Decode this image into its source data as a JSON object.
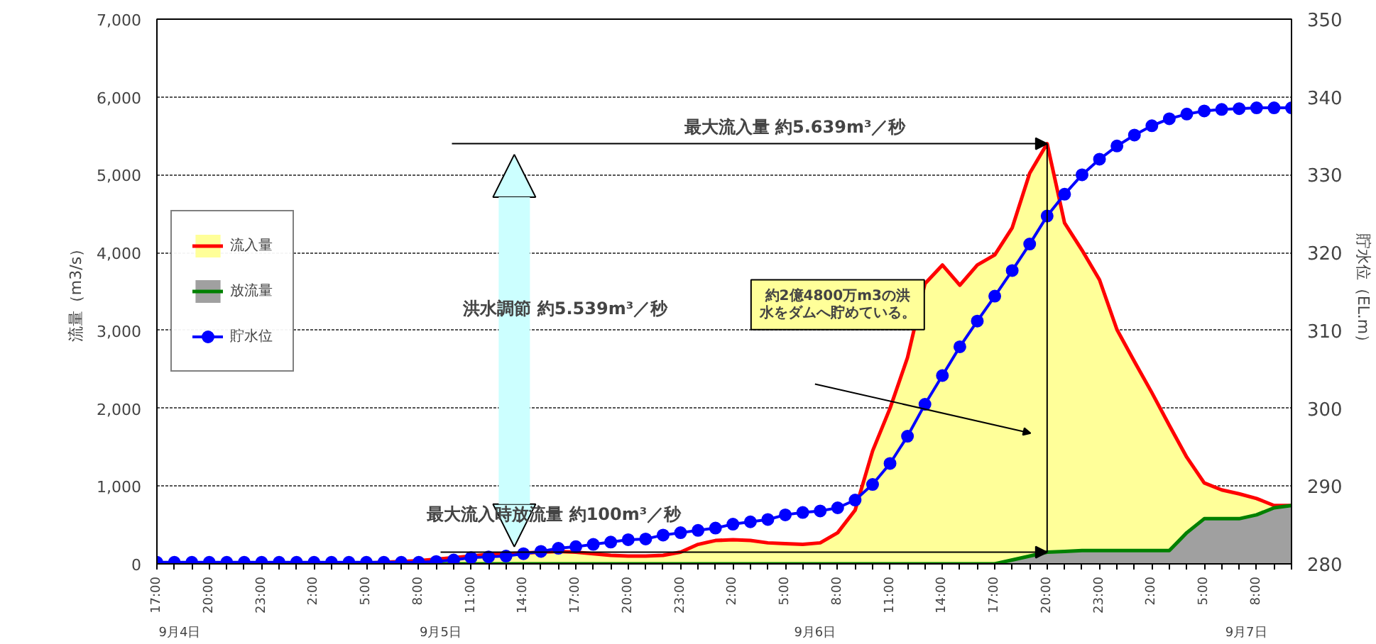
{
  "chart_data": {
    "type": "area",
    "ylabel": "流量（m3/s）",
    "y2label": "貯水位（EL.m）",
    "categories": [
      "17:00",
      null,
      null,
      "20:00",
      null,
      null,
      "23:00",
      null,
      null,
      "2:00",
      null,
      null,
      "5:00",
      null,
      null,
      "8:00",
      null,
      null,
      "11:00",
      null,
      null,
      "14:00",
      null,
      null,
      "17:00",
      null,
      null,
      "20:00",
      null,
      null,
      "23:00",
      null,
      null,
      "2:00",
      null,
      null,
      "5:00",
      null,
      null,
      "8:00",
      null,
      null,
      "11:00",
      null,
      null,
      "14:00",
      null,
      null,
      "17:00",
      null,
      null,
      "20:00",
      null,
      null,
      "23:00",
      null,
      null,
      "2:00",
      null,
      null,
      "5:00",
      null,
      null,
      "8:00",
      null,
      null
    ],
    "series": [
      {
        "name": "流入量",
        "color": "#ff0000",
        "values": [
          0,
          0,
          0,
          0,
          0,
          0,
          0,
          0,
          0,
          0,
          0,
          0,
          10,
          20,
          30,
          40,
          60,
          80,
          100,
          120,
          130,
          140,
          150,
          160,
          150,
          130,
          110,
          100,
          100,
          110,
          150,
          250,
          300,
          310,
          300,
          270,
          260,
          250,
          270,
          400,
          690,
          1450,
          2000,
          2650,
          3600,
          3840,
          3580,
          3840,
          3970,
          4320,
          5020,
          5400,
          4380,
          4030,
          3650,
          3010,
          2600,
          2200,
          1780,
          1370,
          1040,
          950,
          900,
          840,
          750,
          750
        ]
      },
      {
        "name": "放流量",
        "color": "#008000",
        "values": [
          0,
          0,
          0,
          0,
          0,
          0,
          0,
          0,
          0,
          0,
          0,
          0,
          0,
          0,
          0,
          0,
          0,
          0,
          0,
          0,
          0,
          0,
          0,
          0,
          0,
          0,
          0,
          0,
          0,
          0,
          0,
          0,
          0,
          0,
          0,
          0,
          0,
          0,
          0,
          0,
          0,
          0,
          0,
          0,
          0,
          0,
          0,
          0,
          0,
          50,
          100,
          150,
          160,
          170,
          170,
          170,
          170,
          170,
          170,
          400,
          580,
          580,
          580,
          630,
          720,
          750
        ]
      },
      {
        "name": "貯水位",
        "type": "line",
        "axis": "y2",
        "marker": "circle",
        "color": "#0000ff",
        "values": [
          280.2,
          280.2,
          280.2,
          280.2,
          280.2,
          280.2,
          280.2,
          280.2,
          280.2,
          280.2,
          280.2,
          280.2,
          280.2,
          280.2,
          280.2,
          280.2,
          280.3,
          280.5,
          280.8,
          280.9,
          281,
          281.3,
          281.6,
          282,
          282.2,
          282.5,
          282.8,
          283.1,
          283.2,
          283.7,
          284,
          284.3,
          284.6,
          285.1,
          285.4,
          285.7,
          286.3,
          286.6,
          286.8,
          287.2,
          288.2,
          290.2,
          292.9,
          296.4,
          300.5,
          304.2,
          307.9,
          311.2,
          314.4,
          317.7,
          321.1,
          324.7,
          327.5,
          330,
          332,
          333.7,
          335.1,
          336.3,
          337.2,
          337.8,
          338.2,
          338.4,
          338.5,
          338.6,
          338.6,
          338.6
        ]
      }
    ],
    "ylim": [
      0,
      7000
    ],
    "yticks": [
      0,
      {
        "value": 1000,
        "label": "1,000"
      },
      {
        "value": 2000,
        "label": "2,000"
      },
      {
        "value": 3000,
        "label": "3,000"
      },
      {
        "value": 4000,
        "label": "4,000"
      },
      {
        "value": 5000,
        "label": "5,000"
      },
      {
        "value": 6000,
        "label": "6,000"
      },
      {
        "value": 7000,
        "label": "7,000"
      }
    ],
    "y2lim": [
      280,
      350
    ],
    "y2ticks": [
      280,
      290,
      300,
      310,
      320,
      330,
      340,
      350
    ],
    "grid": "y",
    "legend": "left",
    "annotations": [
      "最大流入量 約5.639m³／秒",
      "最大流入時放流量 約100m³／秒",
      "洪水調節 約5.539m³／秒",
      "約2億4800万m3の洪水をダムへ貯めている。",
      "9月4日",
      "9月5日",
      "9月6日",
      "9月7日"
    ]
  }
}
